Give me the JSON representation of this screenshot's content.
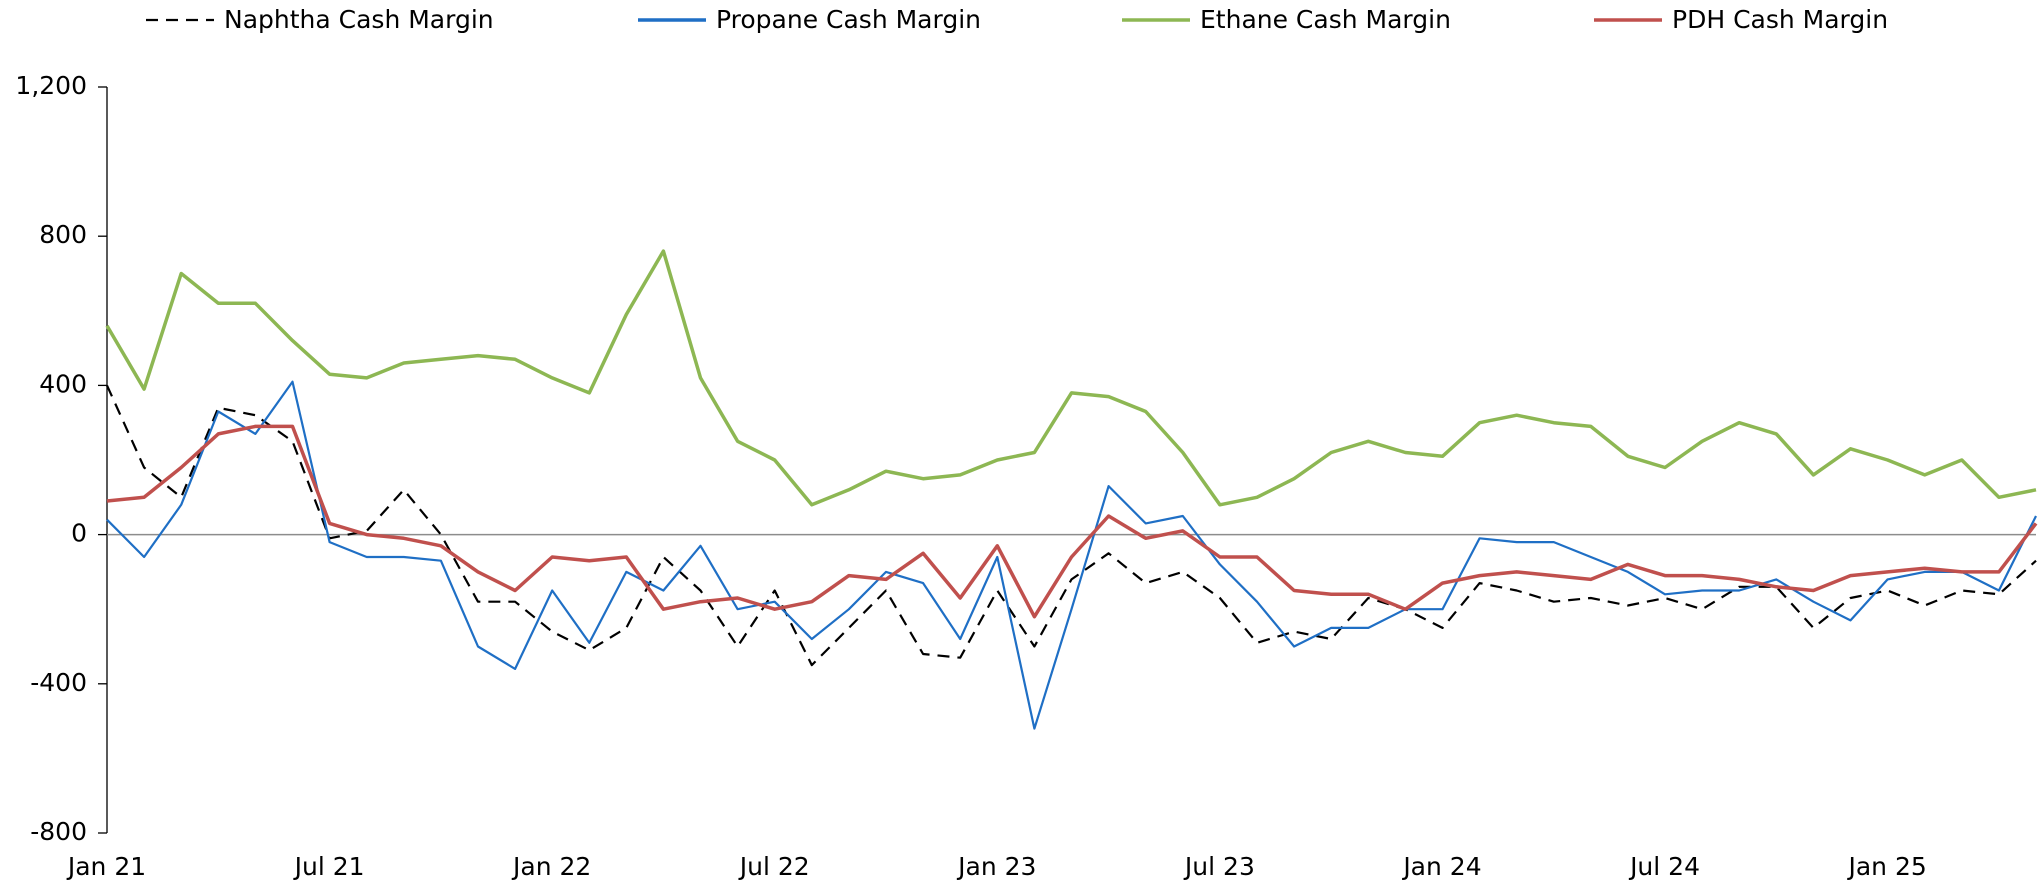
{
  "chart_data": {
    "type": "line",
    "categories": [
      "Jan 21",
      null,
      null,
      null,
      null,
      null,
      "Jul 21",
      null,
      null,
      null,
      null,
      null,
      "Jan 22",
      null,
      null,
      null,
      null,
      null,
      "Jul 22",
      null,
      null,
      null,
      null,
      null,
      "Jan 23",
      null,
      null,
      null,
      null,
      null,
      "Jul 23",
      null,
      null,
      null,
      null,
      null,
      "Jan 24",
      null,
      null,
      null,
      null,
      null,
      "Jul 24",
      null,
      null,
      null,
      null,
      null,
      "Jan 25",
      null,
      null,
      null,
      null
    ],
    "series": [
      {
        "name": "Naphtha Cash Margin",
        "color": "#000000",
        "dashed": true,
        "values": [
          400,
          180,
          100,
          340,
          320,
          250,
          -10,
          10,
          120,
          0,
          -180,
          -180,
          -260,
          -310,
          -250,
          -60,
          -150,
          -300,
          -150,
          -350,
          -250,
          -150,
          -320,
          -330,
          -150,
          -300,
          -120,
          -50,
          -130,
          -100,
          -170,
          -290,
          -260,
          -280,
          -170,
          -200,
          -250,
          -130,
          -150,
          -180,
          -170,
          -190,
          -170,
          -200,
          -140,
          -140,
          -250,
          -170,
          -150,
          -190,
          -150,
          -160,
          -70
        ]
      },
      {
        "name": "Propane Cash Margin",
        "color": "#1f6fc5",
        "dashed": false,
        "values": [
          40,
          -60,
          80,
          330,
          270,
          410,
          -20,
          -60,
          -60,
          -70,
          -300,
          -360,
          -150,
          -290,
          -100,
          -150,
          -30,
          -200,
          -180,
          -280,
          -200,
          -100,
          -130,
          -280,
          -60,
          -520,
          -200,
          130,
          30,
          50,
          -80,
          -180,
          -300,
          -250,
          -250,
          -200,
          -200,
          -10,
          -20,
          -20,
          -60,
          -100,
          -160,
          -150,
          -150,
          -120,
          -180,
          -230,
          -120,
          -100,
          -100,
          -150,
          50
        ]
      },
      {
        "name": "Ethane Cash Margin",
        "color": "#8db753",
        "dashed": false,
        "values": [
          560,
          390,
          700,
          620,
          620,
          520,
          430,
          420,
          460,
          470,
          480,
          470,
          420,
          380,
          590,
          760,
          420,
          250,
          200,
          80,
          120,
          170,
          150,
          160,
          200,
          220,
          380,
          370,
          330,
          220,
          80,
          100,
          150,
          220,
          250,
          220,
          210,
          300,
          320,
          300,
          290,
          210,
          180,
          250,
          300,
          270,
          160,
          230,
          200,
          160,
          200,
          100,
          120
        ]
      },
      {
        "name": "PDH Cash Margin",
        "color": "#c0504d",
        "dashed": false,
        "values": [
          90,
          100,
          180,
          270,
          290,
          290,
          30,
          0,
          -10,
          -30,
          -100,
          -150,
          -60,
          -70,
          -60,
          -200,
          -180,
          -170,
          -200,
          -180,
          -110,
          -120,
          -50,
          -170,
          -30,
          -220,
          -60,
          50,
          -10,
          10,
          -60,
          -60,
          -150,
          -160,
          -160,
          -200,
          -130,
          -110,
          -100,
          -110,
          -120,
          -80,
          -110,
          -110,
          -120,
          -140,
          -150,
          -110,
          -100,
          -90,
          -100,
          -100,
          30
        ]
      }
    ],
    "ylim": [
      -800,
      1200
    ],
    "yticks": [
      -800,
      -400,
      0,
      400,
      800,
      {
        "value": 1200,
        "label": "1,200"
      }
    ],
    "legend": "top"
  }
}
